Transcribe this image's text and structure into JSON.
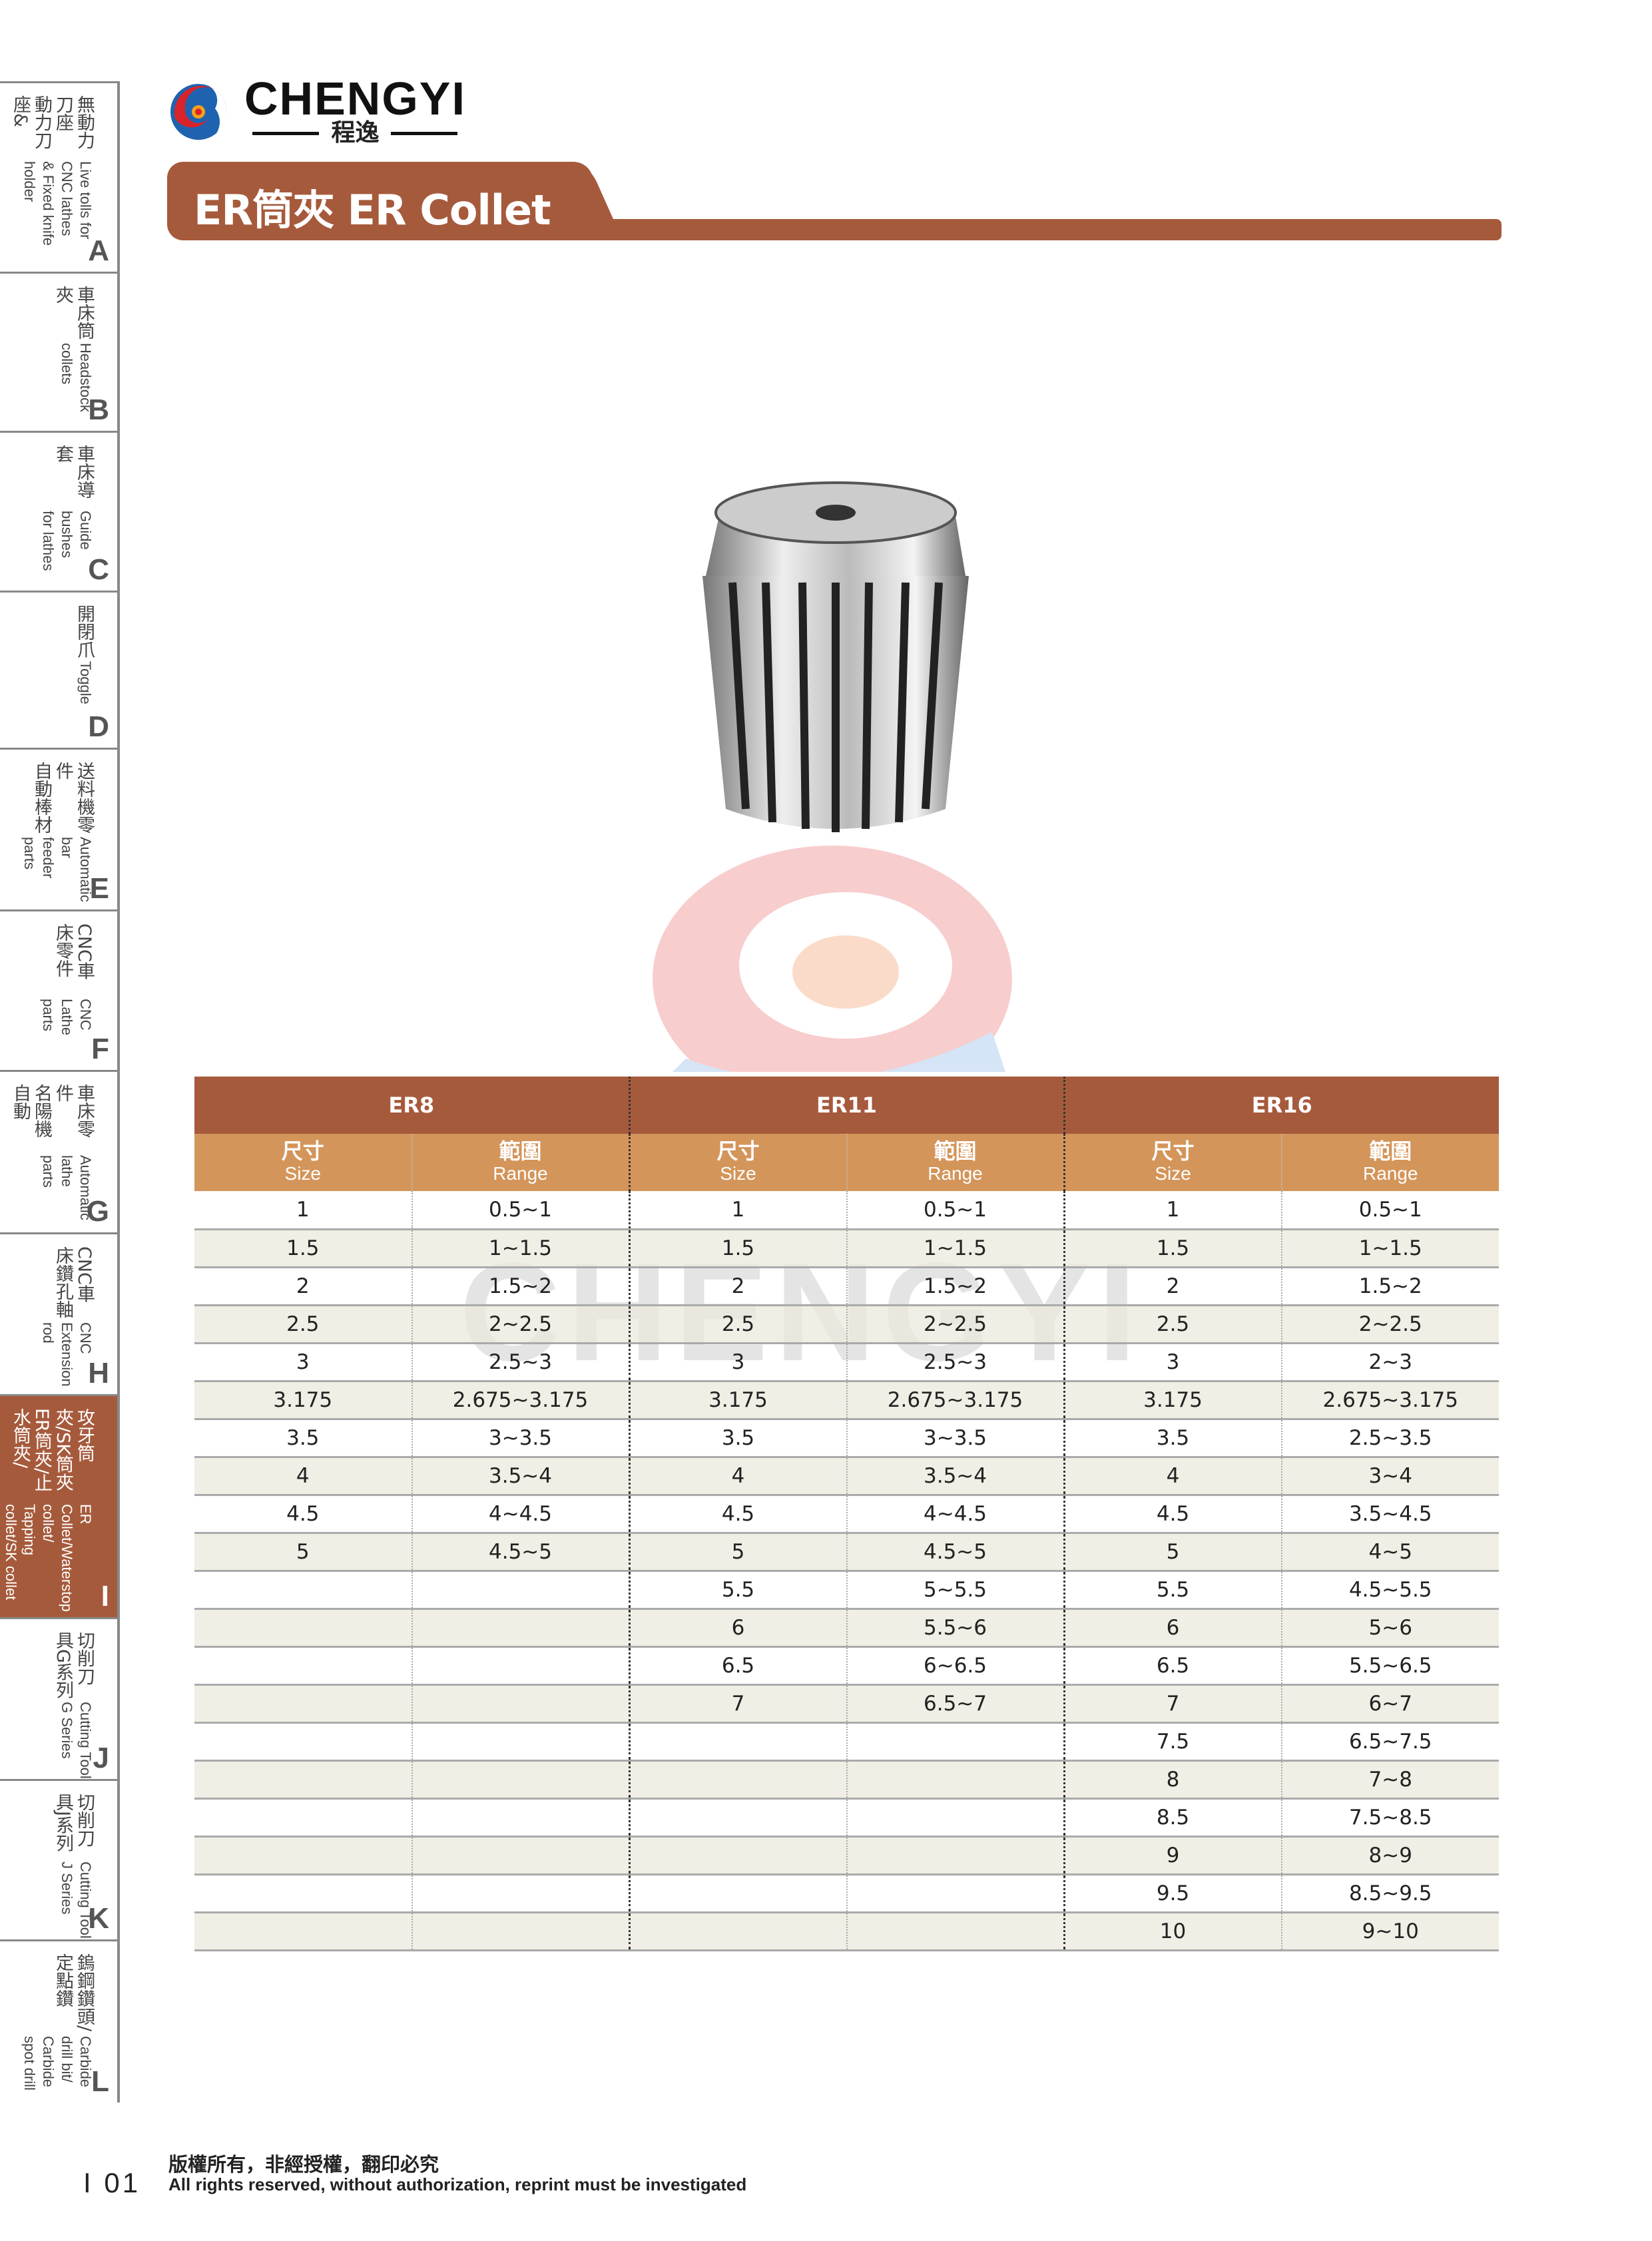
{
  "brand": {
    "name_en": "CHENGYI",
    "name_zh": "程逸"
  },
  "title": "ER筒夾  ER Collet",
  "sidebar": {
    "items": [
      {
        "zh": "無動力刀座\n動力刀座&",
        "en": "Live tolls for CNC lathes\n& Fixed knife holder",
        "letter": "A"
      },
      {
        "zh": "車床筒夾",
        "en": "Headstock collets",
        "letter": "B"
      },
      {
        "zh": "車床導套",
        "en": "Guide bushes\nfor lathes",
        "letter": "C"
      },
      {
        "zh": "開閉爪",
        "en": "Toggle",
        "letter": "D"
      },
      {
        "zh": "送料機零件\n自動棒材",
        "en": "Automatic bar\nfeeder parts",
        "letter": "E"
      },
      {
        "zh": "CNC車床零件",
        "en": "CNC Lathe parts",
        "letter": "F"
      },
      {
        "zh": "車床零件\n名陽機自動",
        "en": "Automatic lathe\nparts",
        "letter": "G"
      },
      {
        "zh": "CNC車床鑽孔軸",
        "en": "CNC Extension rod",
        "letter": "H"
      },
      {
        "zh": "攻牙筒夾/SK筒夾\nER筒夾/止水筒夾/",
        "en": "ER Collet/Waterstop collet/\nTapping collet/SK collet",
        "letter": "I",
        "active": true
      },
      {
        "zh": "切削刀具G系列",
        "en": "Cutting Tool G Series",
        "letter": "J"
      },
      {
        "zh": "切削刀具J系列",
        "en": "Cutting Tool J Series",
        "letter": "K"
      },
      {
        "zh": "鎢鋼鑽頭/定點鑽",
        "en": "Carbide drill bit/\nCarbide spot drill",
        "letter": "L"
      }
    ]
  },
  "table": {
    "groups": [
      "ER8",
      "ER11",
      "ER16"
    ],
    "col_zh": [
      "尺寸",
      "範圍"
    ],
    "col_en": [
      "Size",
      "Range"
    ],
    "rows": [
      [
        "1",
        "0.5~1",
        "1",
        "0.5~1",
        "1",
        "0.5~1"
      ],
      [
        "1.5",
        "1~1.5",
        "1.5",
        "1~1.5",
        "1.5",
        "1~1.5"
      ],
      [
        "2",
        "1.5~2",
        "2",
        "1.5~2",
        "2",
        "1.5~2"
      ],
      [
        "2.5",
        "2~2.5",
        "2.5",
        "2~2.5",
        "2.5",
        "2~2.5"
      ],
      [
        "3",
        "2.5~3",
        "3",
        "2.5~3",
        "3",
        "2~3"
      ],
      [
        "3.175",
        "2.675~3.175",
        "3.175",
        "2.675~3.175",
        "3.175",
        "2.675~3.175"
      ],
      [
        "3.5",
        "3~3.5",
        "3.5",
        "3~3.5",
        "3.5",
        "2.5~3.5"
      ],
      [
        "4",
        "3.5~4",
        "4",
        "3.5~4",
        "4",
        "3~4"
      ],
      [
        "4.5",
        "4~4.5",
        "4.5",
        "4~4.5",
        "4.5",
        "3.5~4.5"
      ],
      [
        "5",
        "4.5~5",
        "5",
        "4.5~5",
        "5",
        "4~5"
      ],
      [
        "",
        "",
        "5.5",
        "5~5.5",
        "5.5",
        "4.5~5.5"
      ],
      [
        "",
        "",
        "6",
        "5.5~6",
        "6",
        "5~6"
      ],
      [
        "",
        "",
        "6.5",
        "6~6.5",
        "6.5",
        "5.5~6.5"
      ],
      [
        "",
        "",
        "7",
        "6.5~7",
        "7",
        "6~7"
      ],
      [
        "",
        "",
        "",
        "",
        "7.5",
        "6.5~7.5"
      ],
      [
        "",
        "",
        "",
        "",
        "8",
        "7~8"
      ],
      [
        "",
        "",
        "",
        "",
        "8.5",
        "7.5~8.5"
      ],
      [
        "",
        "",
        "",
        "",
        "9",
        "8~9"
      ],
      [
        "",
        "",
        "",
        "",
        "9.5",
        "8.5~9.5"
      ],
      [
        "",
        "",
        "",
        "",
        "10",
        "9~10"
      ]
    ]
  },
  "footer": {
    "page": "I 01",
    "copyright_zh": "版權所有，非經授權，翻印必究",
    "copyright_en": "All rights reserved, without authorization, reprint must be investigated"
  },
  "colors": {
    "primary": "#A65A3C",
    "secondary": "#D4955A"
  }
}
